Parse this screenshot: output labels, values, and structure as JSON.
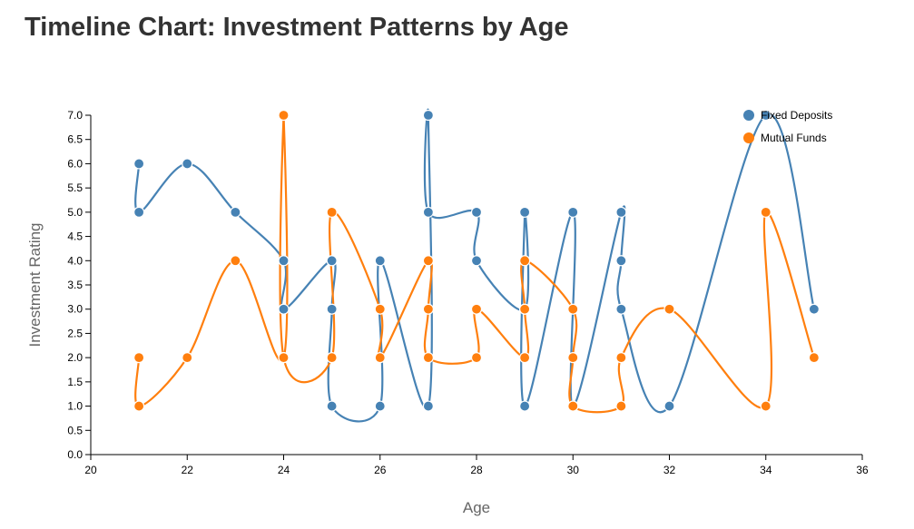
{
  "chart_data": {
    "type": "line",
    "title": "Timeline Chart: Investment Patterns by Age",
    "xlabel": "Age",
    "ylabel": "Investment Rating",
    "xlim": [
      20,
      36
    ],
    "ylim": [
      0,
      7
    ],
    "xticks": [
      "20",
      "22",
      "24",
      "26",
      "28",
      "30",
      "32",
      "34",
      "36"
    ],
    "yticks": [
      "0.0",
      "0.5",
      "1.0",
      "1.5",
      "2.0",
      "2.5",
      "3.0",
      "3.5",
      "4.0",
      "4.5",
      "5.0",
      "5.5",
      "6.0",
      "6.5",
      "7.0"
    ],
    "legend_position": "top-right",
    "grid": false,
    "series": [
      {
        "name": "Fixed Deposits",
        "color": "#4682b4",
        "points": [
          [
            21,
            6
          ],
          [
            21,
            5
          ],
          [
            22,
            6
          ],
          [
            23,
            5
          ],
          [
            24,
            4
          ],
          [
            24,
            3
          ],
          [
            25,
            4
          ],
          [
            25,
            3
          ],
          [
            25,
            1
          ],
          [
            26,
            1
          ],
          [
            26,
            4
          ],
          [
            27,
            1
          ],
          [
            27,
            7
          ],
          [
            27,
            5
          ],
          [
            28,
            5
          ],
          [
            28,
            4
          ],
          [
            29,
            3
          ],
          [
            29,
            5
          ],
          [
            29,
            1
          ],
          [
            30,
            5
          ],
          [
            30,
            1
          ],
          [
            31,
            5
          ],
          [
            31,
            4
          ],
          [
            31,
            3
          ],
          [
            32,
            1
          ],
          [
            34,
            7
          ],
          [
            35,
            3
          ]
        ]
      },
      {
        "name": "Mutual Funds",
        "color": "#ff7f0e",
        "points": [
          [
            21,
            2
          ],
          [
            21,
            1
          ],
          [
            22,
            2
          ],
          [
            23,
            4
          ],
          [
            24,
            2
          ],
          [
            24,
            7
          ],
          [
            24,
            2
          ],
          [
            25,
            2
          ],
          [
            25,
            5
          ],
          [
            26,
            3
          ],
          [
            26,
            2
          ],
          [
            27,
            4
          ],
          [
            27,
            3
          ],
          [
            27,
            2
          ],
          [
            28,
            2
          ],
          [
            28,
            3
          ],
          [
            29,
            2
          ],
          [
            29,
            3
          ],
          [
            29,
            4
          ],
          [
            30,
            3
          ],
          [
            30,
            2
          ],
          [
            30,
            1
          ],
          [
            31,
            1
          ],
          [
            31,
            2
          ],
          [
            32,
            3
          ],
          [
            34,
            1
          ],
          [
            34,
            5
          ],
          [
            35,
            2
          ]
        ]
      }
    ]
  }
}
